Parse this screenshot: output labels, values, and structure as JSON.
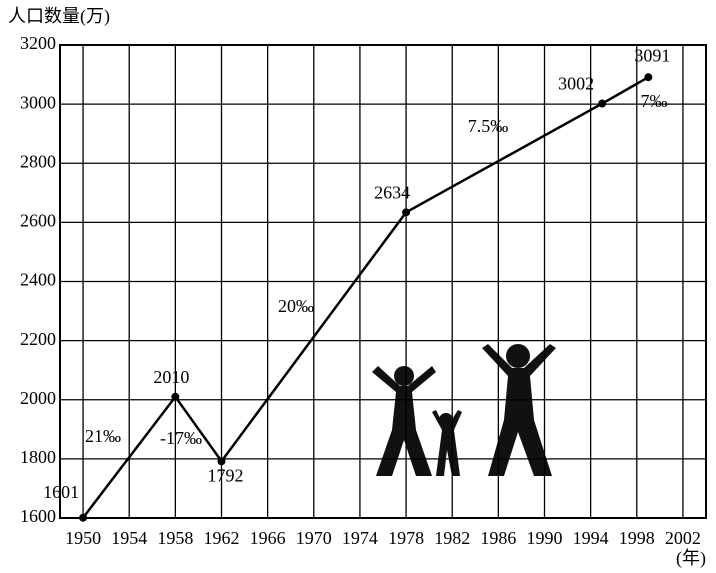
{
  "chart_data": {
    "type": "line",
    "y_axis_label": "人口数量(万)",
    "x_axis_label": "(年)",
    "x": [
      1950,
      1958,
      1962,
      1978,
      1995,
      1999
    ],
    "series": [
      {
        "values": [
          1601,
          2010,
          1792,
          2634,
          3002,
          3091
        ],
        "color": "#000000"
      }
    ],
    "xlim": [
      1948,
      2004
    ],
    "xticks": [
      1950,
      1954,
      1958,
      1962,
      1966,
      1970,
      1974,
      1978,
      1982,
      1986,
      1990,
      1994,
      1998,
      2002
    ],
    "ylim": [
      1600,
      3200
    ],
    "yticks": [
      1600,
      1800,
      2000,
      2200,
      2400,
      2600,
      2800,
      3000,
      3200
    ],
    "grid": true,
    "annotations": [
      "21‰",
      "-17‰",
      "20‰",
      "7.5‰",
      "7‰"
    ]
  }
}
